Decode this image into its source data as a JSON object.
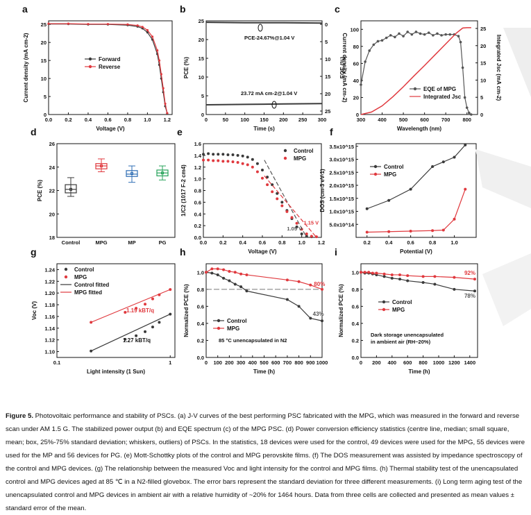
{
  "figure": {
    "panels": {
      "a": {
        "letter": "a"
      },
      "b": {
        "letter": "b"
      },
      "c": {
        "letter": "c"
      },
      "d": {
        "letter": "d"
      },
      "e": {
        "letter": "e"
      },
      "f": {
        "letter": "f"
      },
      "g": {
        "letter": "g"
      },
      "h": {
        "letter": "h"
      },
      "i": {
        "letter": "i"
      }
    }
  },
  "caption": {
    "label": "Figure 5.",
    "text": "Photovoltaic performance and stability of PSCs. (a) J-V curves of the best performing PSC fabricated with the MPG, which was measured in the forward and reverse scan under AM 1.5 G. The stabilized power output (b) and EQE spectrum (c) of the MPG PSC. (d) Power conversion efficiency statistics (centre line, median; small square, mean; box, 25%-75% standard deviation; whiskers, outliers) of PSCs. In the statistics, 18 devices were used for the control, 49 devices were used for the MPG, 55 devices were used for the MP and 56 devices for PG. (e) Mott-Schottky plots of the control and MPG perovskite films. (f) The DOS measurement was assisted by impedance spectroscopy of the control and MPG devices. (g) The relationship between the measured Voc and light intensity for the control and MPG films. (h) Thermal stability test of the unencapsulated control and MPG devices aged at 85 ℃ in a N2-filled glovebox. The error bars represent the standard deviation for three different measurements. (i) Long term aging test of the unencapsulated control and MPG devices in ambient air with a relative humidity of ~20% for 1464 hours. Data from three cells are collected and presented as mean values ± standard error of the mean."
  },
  "colors": {
    "black_series": "#3a3a3a",
    "red_series": "#e0393e",
    "mp": "#2e6db4",
    "pg": "#27a35a"
  },
  "chart_data": [
    {
      "panel": "a",
      "type": "line",
      "xlabel": "Voltage (V)",
      "ylabel": "Current density (mA cm-2)",
      "xlim": [
        0.0,
        1.25
      ],
      "ylim": [
        0,
        26
      ],
      "xticks": [
        "0.0",
        "0.2",
        "0.4",
        "0.6",
        "0.8",
        "1.0",
        "1.2"
      ],
      "yticks": [
        "0",
        "5",
        "10",
        "15",
        "20",
        "25"
      ],
      "legend": [
        "Forward",
        "Reverse"
      ],
      "series": [
        {
          "name": "Forward",
          "x": [
            0,
            0.2,
            0.4,
            0.6,
            0.8,
            0.9,
            0.95,
            1.0,
            1.05,
            1.1,
            1.12,
            1.14,
            1.16,
            1.18,
            1.2
          ],
          "y": [
            25.1,
            25.1,
            25.0,
            25.0,
            24.8,
            24.4,
            23.9,
            22.8,
            20.8,
            16.8,
            13.8,
            10.0,
            6.2,
            2.3,
            0.3
          ]
        },
        {
          "name": "Reverse",
          "x": [
            0,
            0.2,
            0.4,
            0.6,
            0.8,
            0.9,
            0.95,
            1.0,
            1.05,
            1.1,
            1.12,
            1.14,
            1.16,
            1.18,
            1.2
          ],
          "y": [
            25.2,
            25.2,
            25.1,
            25.1,
            25.0,
            24.7,
            24.3,
            23.4,
            21.6,
            17.8,
            15.0,
            11.2,
            7.3,
            3.0,
            0.4
          ]
        }
      ]
    },
    {
      "panel": "b",
      "type": "line",
      "xlabel": "Time (s)",
      "ylabel": "PCE (%)",
      "ylabel2": "Current density (mA cm-2)",
      "xlim": [
        0,
        300
      ],
      "ylim": [
        0,
        25
      ],
      "xticks": [
        "0",
        "50",
        "100",
        "150",
        "200",
        "250",
        "300"
      ],
      "yticks": [
        "0",
        "5",
        "10",
        "15",
        "20",
        "25"
      ],
      "y2ticks": [
        "0",
        "5",
        "10",
        "15",
        "20",
        "25"
      ],
      "annotations": [
        "PCE-24.67%@1.04 V",
        "23.72 mA cm-2@1.04 V"
      ],
      "series": [
        {
          "name": "PCE",
          "x": [
            0,
            100,
            200,
            300
          ],
          "y": [
            24.6,
            24.5,
            24.5,
            24.4
          ]
        },
        {
          "name": "Current density",
          "x": [
            0,
            100,
            200,
            300
          ],
          "y": [
            23.3,
            23.5,
            23.7,
            23.9
          ]
        }
      ]
    },
    {
      "panel": "c",
      "type": "line",
      "xlabel": "Wavelength (nm)",
      "ylabel": "EQE (%)",
      "ylabel2": "Integrated Jsc (mA cm-2)",
      "xlim": [
        300,
        850
      ],
      "ylim": [
        0,
        110
      ],
      "xticks": [
        "300",
        "400",
        "500",
        "600",
        "700",
        "800"
      ],
      "yticks": [
        "0",
        "20",
        "40",
        "60",
        "80",
        "100"
      ],
      "y2ticks": [
        "0",
        "5",
        "10",
        "15",
        "20",
        "25"
      ],
      "legend": [
        "EQE of MPG",
        "Integrated Jsc"
      ],
      "series": [
        {
          "name": "EQE of MPG",
          "x": [
            300,
            320,
            340,
            360,
            380,
            400,
            420,
            440,
            460,
            480,
            500,
            520,
            540,
            560,
            580,
            600,
            620,
            640,
            660,
            680,
            700,
            720,
            740,
            760,
            770,
            780,
            790,
            800,
            810,
            820
          ],
          "y": [
            35,
            62,
            75,
            82,
            86,
            87,
            90,
            93,
            91,
            95,
            92,
            97,
            94,
            97,
            95,
            94,
            96,
            93,
            95,
            93,
            94,
            94,
            94,
            92,
            85,
            55,
            20,
            8,
            2,
            0
          ]
        },
        {
          "name": "Integrated Jsc",
          "x": [
            300,
            350,
            400,
            450,
            500,
            550,
            600,
            650,
            700,
            750,
            780,
            800,
            820
          ],
          "y": [
            0,
            0.7,
            2.4,
            4.9,
            7.7,
            10.7,
            13.6,
            16.6,
            19.6,
            22.6,
            24.0,
            24.1,
            24.1
          ]
        }
      ]
    },
    {
      "panel": "d",
      "type": "box",
      "ylabel": "PCE (%)",
      "ylim": [
        18,
        26
      ],
      "yticks": [
        "18",
        "20",
        "22",
        "24",
        "26"
      ],
      "categories": [
        "Control",
        "MPG",
        "MP",
        "PG"
      ],
      "boxes": [
        {
          "name": "Control",
          "min": 21.5,
          "q1": 21.8,
          "median": 22.1,
          "mean": 22.1,
          "q3": 22.5,
          "max": 23.1
        },
        {
          "name": "MPG",
          "min": 23.6,
          "q1": 23.85,
          "median": 24.1,
          "mean": 24.1,
          "q3": 24.3,
          "max": 24.7
        },
        {
          "name": "MP",
          "min": 22.7,
          "q1": 23.2,
          "median": 23.4,
          "mean": 23.45,
          "q3": 23.7,
          "max": 24.1
        },
        {
          "name": "PG",
          "min": 22.9,
          "q1": 23.25,
          "median": 23.5,
          "mean": 23.5,
          "q3": 23.75,
          "max": 24.1
        }
      ]
    },
    {
      "panel": "e",
      "type": "scatter",
      "xlabel": "Voltage (V)",
      "ylabel": "1/C2 (1017 F-2 cm4)",
      "xlim": [
        0.0,
        1.2
      ],
      "ylim": [
        0.0,
        1.6
      ],
      "xticks": [
        "0.0",
        "0.2",
        "0.4",
        "0.6",
        "0.8",
        "1.0",
        "1.2"
      ],
      "yticks": [
        "0.0",
        "0.2",
        "0.4",
        "0.6",
        "0.8",
        "1.0",
        "1.2",
        "1.4",
        "1.6"
      ],
      "legend": [
        "Control",
        "MPG"
      ],
      "annotations": [
        "1.05 V",
        "1.15 V"
      ],
      "series": [
        {
          "name": "Control",
          "x": [
            0.0,
            0.05,
            0.1,
            0.15,
            0.2,
            0.25,
            0.3,
            0.35,
            0.4,
            0.45,
            0.5,
            0.55,
            0.6,
            0.65,
            0.7,
            0.75,
            0.8,
            0.85,
            0.9,
            0.95,
            1.0,
            1.05,
            1.1
          ],
          "y": [
            1.42,
            1.43,
            1.42,
            1.42,
            1.42,
            1.41,
            1.41,
            1.4,
            1.39,
            1.37,
            1.33,
            1.26,
            1.15,
            1.03,
            0.9,
            0.75,
            0.6,
            0.46,
            0.32,
            0.18,
            0.06,
            0.02,
            0.01
          ]
        },
        {
          "name": "MPG",
          "x": [
            0.0,
            0.05,
            0.1,
            0.15,
            0.2,
            0.25,
            0.3,
            0.35,
            0.4,
            0.45,
            0.5,
            0.55,
            0.6,
            0.65,
            0.7,
            0.75,
            0.8,
            0.85,
            0.9,
            0.95,
            1.0,
            1.05,
            1.1,
            1.15
          ],
          "y": [
            1.32,
            1.32,
            1.31,
            1.31,
            1.3,
            1.3,
            1.29,
            1.28,
            1.26,
            1.24,
            1.2,
            1.12,
            1.01,
            0.9,
            0.78,
            0.66,
            0.54,
            0.44,
            0.34,
            0.24,
            0.14,
            0.06,
            0.02,
            0.01
          ]
        }
      ]
    },
    {
      "panel": "f",
      "type": "line",
      "xlabel": "Potential (V)",
      "ylabel": "DOS (cm-3 eV-1)",
      "xlim": [
        0.1,
        1.2
      ],
      "ylim": [
        0,
        3600000000000000.0
      ],
      "xticks": [
        "0.2",
        "0.4",
        "0.6",
        "0.8",
        "1.0"
      ],
      "yticks": [
        "5.0x10^14",
        "1.0x10^15",
        "1.5x10^15",
        "2.0x10^15",
        "2.5x10^15",
        "3.0x10^15",
        "3.5x10^15"
      ],
      "legend": [
        "Control",
        "MPG"
      ],
      "series": [
        {
          "name": "Control",
          "x": [
            0.2,
            0.4,
            0.6,
            0.8,
            0.9,
            1.0,
            1.1
          ],
          "y": [
            1100000000000000.0,
            1420000000000000.0,
            1850000000000000.0,
            2720000000000000.0,
            2900000000000000.0,
            3080000000000000.0,
            3550000000000000.0
          ]
        },
        {
          "name": "MPG",
          "x": [
            0.2,
            0.4,
            0.6,
            0.8,
            0.9,
            1.0,
            1.1
          ],
          "y": [
            200000000000000.0,
            220000000000000.0,
            240000000000000.0,
            260000000000000.0,
            280000000000000.0,
            700000000000000.0,
            1850000000000000.0
          ]
        }
      ]
    },
    {
      "panel": "g",
      "type": "scatter",
      "xlabel": "Light intensity (1 Sun)",
      "ylabel": "Voc (V)",
      "xscale": "log",
      "xlim": [
        0.1,
        1.1
      ],
      "ylim": [
        1.09,
        1.25
      ],
      "xticks": [
        "0.1",
        "1"
      ],
      "yticks": [
        "1.10",
        "1.12",
        "1.14",
        "1.16",
        "1.18",
        "1.20",
        "1.22",
        "1.24"
      ],
      "legend": [
        "Control",
        "MPG",
        "Control fitted",
        "MPG fitted"
      ],
      "annotations": [
        "1.19 kBT/q",
        "1.27 kBT/q"
      ],
      "series": [
        {
          "name": "Control",
          "x": [
            0.2,
            0.4,
            0.5,
            0.6,
            0.7,
            0.8,
            1.0
          ],
          "y": [
            1.101,
            1.121,
            1.127,
            1.134,
            1.142,
            1.15,
            1.164
          ]
        },
        {
          "name": "MPG",
          "x": [
            0.2,
            0.4,
            0.5,
            0.6,
            0.7,
            0.8,
            1.0
          ],
          "y": [
            1.15,
            1.167,
            1.174,
            1.181,
            1.19,
            1.197,
            1.206
          ]
        }
      ]
    },
    {
      "panel": "h",
      "type": "line",
      "xlabel": "Time (h)",
      "ylabel": "Normalized PCE (%)",
      "xlim": [
        0,
        1000
      ],
      "ylim": [
        0.0,
        1.1
      ],
      "xticks": [
        "0",
        "100",
        "200",
        "300",
        "400",
        "500",
        "600",
        "700",
        "800",
        "900",
        "1000"
      ],
      "yticks": [
        "0.0",
        "0.2",
        "0.4",
        "0.6",
        "0.8",
        "1.0"
      ],
      "legend": [
        "Control",
        "MPG"
      ],
      "annotations": [
        "80%",
        "43%",
        "85 °C unencapsulated in N2"
      ],
      "series": [
        {
          "name": "Control",
          "x": [
            0,
            50,
            100,
            150,
            200,
            250,
            300,
            350,
            700,
            800,
            900,
            1000
          ],
          "y": [
            1.0,
            0.99,
            0.97,
            0.93,
            0.9,
            0.86,
            0.83,
            0.78,
            0.68,
            0.6,
            0.46,
            0.43
          ]
        },
        {
          "name": "MPG",
          "x": [
            0,
            50,
            100,
            150,
            200,
            250,
            300,
            350,
            700,
            800,
            900,
            1000
          ],
          "y": [
            1.0,
            1.04,
            1.04,
            1.03,
            1.01,
            1.0,
            0.98,
            0.97,
            0.91,
            0.89,
            0.85,
            0.8
          ]
        }
      ]
    },
    {
      "panel": "i",
      "type": "line",
      "xlabel": "Time (h)",
      "ylabel": "Normalized PCE (%)",
      "xlim": [
        0,
        1500
      ],
      "ylim": [
        0.0,
        1.1
      ],
      "xticks": [
        "0",
        "200",
        "400",
        "600",
        "800",
        "1000",
        "1200",
        "1400"
      ],
      "yticks": [
        "0.0",
        "0.2",
        "0.4",
        "0.6",
        "0.8",
        "1.0"
      ],
      "legend": [
        "Control",
        "MPG"
      ],
      "annotations": [
        "92%",
        "78%",
        "Dark storage unencapsulated",
        "in ambient air (RH~20%)"
      ],
      "series": [
        {
          "name": "Control",
          "x": [
            0,
            50,
            100,
            150,
            200,
            300,
            400,
            500,
            600,
            800,
            950,
            1200,
            1464
          ],
          "y": [
            1.0,
            0.99,
            0.99,
            0.98,
            0.97,
            0.95,
            0.93,
            0.92,
            0.9,
            0.88,
            0.86,
            0.8,
            0.78
          ]
        },
        {
          "name": "MPG",
          "x": [
            0,
            50,
            100,
            150,
            200,
            300,
            400,
            500,
            600,
            800,
            950,
            1200,
            1464
          ],
          "y": [
            1.0,
            1.0,
            1.0,
            0.99,
            0.99,
            0.98,
            0.97,
            0.97,
            0.96,
            0.95,
            0.95,
            0.94,
            0.92
          ]
        }
      ]
    }
  ]
}
